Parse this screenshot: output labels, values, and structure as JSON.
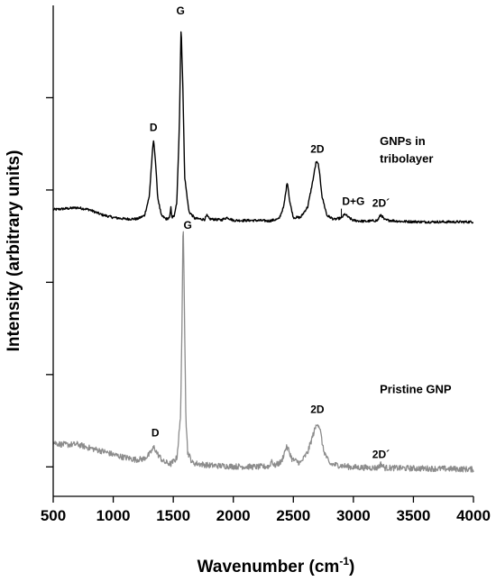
{
  "chart_data": {
    "type": "line",
    "title": "",
    "xlabel": "Wavenumber (cm",
    "xlabel_sup": "-1",
    "xlabel_close": ")",
    "ylabel": "Intensity (arbitrary units)",
    "xlim": [
      500,
      4000
    ],
    "ylim": [
      0,
      1
    ],
    "x_ticks": [
      "500",
      "1000",
      "1500",
      "2000",
      "2500",
      "3000",
      "3500",
      "4000"
    ],
    "y_ticks_count": 5,
    "grid": false,
    "series": [
      {
        "name": "GNPs in tribolayer",
        "name_lines": [
          "GNPs in",
          "tribolayer"
        ],
        "color": "#000000",
        "baseline": 0.56,
        "points": [
          [
            500,
            0.584
          ],
          [
            600,
            0.586
          ],
          [
            700,
            0.588
          ],
          [
            800,
            0.584
          ],
          [
            900,
            0.574
          ],
          [
            1000,
            0.568
          ],
          [
            1100,
            0.565
          ],
          [
            1200,
            0.565
          ],
          [
            1260,
            0.572
          ],
          [
            1300,
            0.61
          ],
          [
            1320,
            0.68
          ],
          [
            1335,
            0.727
          ],
          [
            1350,
            0.69
          ],
          [
            1370,
            0.61
          ],
          [
            1400,
            0.572
          ],
          [
            1440,
            0.565
          ],
          [
            1470,
            0.567
          ],
          [
            1480,
            0.588
          ],
          [
            1490,
            0.568
          ],
          [
            1510,
            0.572
          ],
          [
            1530,
            0.6
          ],
          [
            1550,
            0.75
          ],
          [
            1565,
            0.96
          ],
          [
            1580,
            0.83
          ],
          [
            1595,
            0.65
          ],
          [
            1610,
            0.62
          ],
          [
            1630,
            0.58
          ],
          [
            1680,
            0.566
          ],
          [
            1760,
            0.564
          ],
          [
            1780,
            0.572
          ],
          [
            1800,
            0.565
          ],
          [
            1900,
            0.563
          ],
          [
            1950,
            0.568
          ],
          [
            2000,
            0.562
          ],
          [
            2100,
            0.562
          ],
          [
            2200,
            0.562
          ],
          [
            2300,
            0.561
          ],
          [
            2380,
            0.565
          ],
          [
            2420,
            0.59
          ],
          [
            2450,
            0.642
          ],
          [
            2470,
            0.6
          ],
          [
            2500,
            0.568
          ],
          [
            2560,
            0.568
          ],
          [
            2620,
            0.59
          ],
          [
            2660,
            0.64
          ],
          [
            2690,
            0.682
          ],
          [
            2710,
            0.675
          ],
          [
            2740,
            0.61
          ],
          [
            2780,
            0.572
          ],
          [
            2840,
            0.564
          ],
          [
            2900,
            0.567
          ],
          [
            2930,
            0.575
          ],
          [
            2960,
            0.568
          ],
          [
            3000,
            0.562
          ],
          [
            3100,
            0.56
          ],
          [
            3200,
            0.562
          ],
          [
            3230,
            0.574
          ],
          [
            3260,
            0.563
          ],
          [
            3400,
            0.56
          ],
          [
            3600,
            0.559
          ],
          [
            3800,
            0.559
          ],
          [
            4000,
            0.559
          ]
        ],
        "annotations": [
          {
            "label": "D",
            "x": 1335,
            "y": 0.744
          },
          {
            "label": "G",
            "x": 1560,
            "y": 0.982
          },
          {
            "label": "2D",
            "x": 2700,
            "y": 0.7
          },
          {
            "label": "D+G",
            "x": 3000,
            "y": 0.594
          },
          {
            "label": "2D´",
            "x": 3230,
            "y": 0.59
          }
        ],
        "label_x": 3220,
        "label_y": [
          0.716,
          0.68
        ]
      },
      {
        "name": "Pristine GNP",
        "name_lines": [
          "Pristine GNP"
        ],
        "color": "#8c8c8c",
        "baseline": 0.06,
        "points": [
          [
            500,
            0.11
          ],
          [
            560,
            0.106
          ],
          [
            620,
            0.105
          ],
          [
            700,
            0.106
          ],
          [
            780,
            0.1
          ],
          [
            860,
            0.095
          ],
          [
            940,
            0.09
          ],
          [
            1000,
            0.085
          ],
          [
            1080,
            0.08
          ],
          [
            1180,
            0.075
          ],
          [
            1250,
            0.076
          ],
          [
            1300,
            0.085
          ],
          [
            1340,
            0.1
          ],
          [
            1370,
            0.086
          ],
          [
            1420,
            0.07
          ],
          [
            1480,
            0.066
          ],
          [
            1530,
            0.078
          ],
          [
            1560,
            0.16
          ],
          [
            1572,
            0.34
          ],
          [
            1582,
            0.57
          ],
          [
            1592,
            0.4
          ],
          [
            1605,
            0.16
          ],
          [
            1620,
            0.09
          ],
          [
            1660,
            0.068
          ],
          [
            1800,
            0.063
          ],
          [
            2000,
            0.061
          ],
          [
            2200,
            0.06
          ],
          [
            2300,
            0.061
          ],
          [
            2320,
            0.074
          ],
          [
            2340,
            0.062
          ],
          [
            2400,
            0.07
          ],
          [
            2440,
            0.1
          ],
          [
            2460,
            0.095
          ],
          [
            2490,
            0.075
          ],
          [
            2560,
            0.068
          ],
          [
            2620,
            0.09
          ],
          [
            2670,
            0.13
          ],
          [
            2700,
            0.15
          ],
          [
            2720,
            0.14
          ],
          [
            2750,
            0.095
          ],
          [
            2800,
            0.066
          ],
          [
            3000,
            0.059
          ],
          [
            3200,
            0.058
          ],
          [
            3230,
            0.066
          ],
          [
            3260,
            0.058
          ],
          [
            3500,
            0.057
          ],
          [
            3800,
            0.056
          ],
          [
            4000,
            0.055
          ]
        ],
        "annotations": [
          {
            "label": "G",
            "x": 1620,
            "y": 0.545
          },
          {
            "label": "D",
            "x": 1350,
            "y": 0.122
          },
          {
            "label": "2D",
            "x": 2700,
            "y": 0.17
          },
          {
            "label": "2D´",
            "x": 3230,
            "y": 0.078
          }
        ],
        "label_x": 3220,
        "label_y": [
          0.21
        ]
      }
    ]
  }
}
